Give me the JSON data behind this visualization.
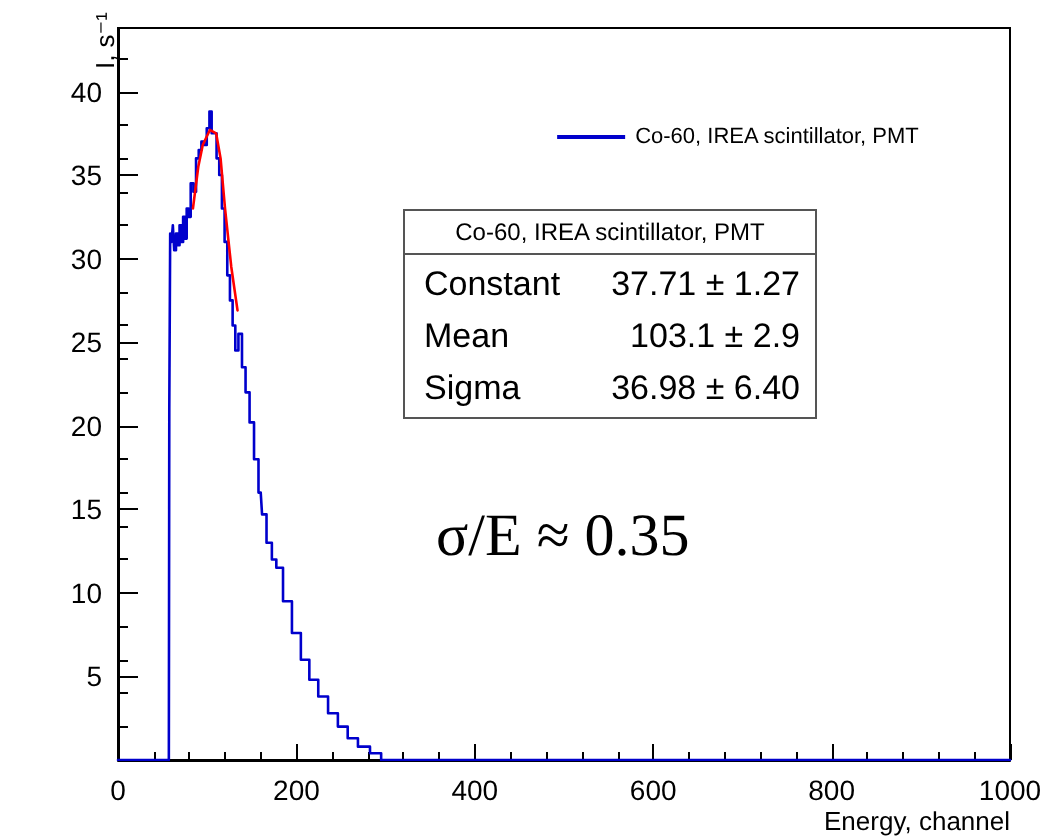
{
  "chart_data": {
    "type": "step",
    "xlabel": "Energy, channel",
    "ylabel": "I, s⁻¹",
    "xlim": [
      0,
      1000
    ],
    "xticks": [
      0,
      200,
      400,
      600,
      800,
      1000
    ],
    "ylim": [
      0,
      43.8
    ],
    "yticks": [
      5,
      10,
      15,
      20,
      25,
      30,
      35,
      40
    ],
    "grid": false,
    "legend": "top right",
    "marker": "none",
    "line_style": "solid",
    "series": [
      {
        "name": "Co-60, IREA scintillator, PMT",
        "color": "#0000cc",
        "x": [
          0,
          57,
          58,
          59,
          61,
          62,
          64,
          66,
          68,
          70,
          72,
          74,
          76,
          78,
          80,
          83,
          86,
          89,
          92,
          95,
          98,
          101,
          104,
          106,
          109,
          112,
          115,
          118,
          121,
          124,
          127,
          130,
          133,
          137,
          141,
          145,
          150,
          155,
          160,
          163,
          170,
          175,
          180,
          190,
          200,
          210,
          219,
          230,
          241,
          252,
          263,
          275,
          290,
          300,
          1000
        ],
        "values": [
          0,
          0,
          21,
          31.5,
          31,
          32,
          30.5,
          31.5,
          30.8,
          32,
          31,
          32.5,
          31.2,
          33,
          32.5,
          34.5,
          34,
          36,
          36.5,
          37,
          36.8,
          37.8,
          38.8,
          37.5,
          37.5,
          36,
          35,
          33,
          31,
          29,
          27.5,
          26,
          24.5,
          25.5,
          23.5,
          22,
          20.2,
          18,
          16,
          14.7,
          13,
          12,
          11.5,
          9.5,
          7.6,
          6,
          4.8,
          3.8,
          2.8,
          2,
          1.3,
          0.8,
          0.4,
          0,
          0
        ]
      },
      {
        "color": "#ff0000",
        "type": "line",
        "x": [
          84,
          90,
          95,
          103,
          110,
          115,
          120,
          127,
          134
        ],
        "values": [
          33,
          35.5,
          36.8,
          37.7,
          37.5,
          36,
          33,
          29.5,
          26.9
        ]
      }
    ],
    "annotations": [
      "Co-60, IREA scintillator, PMT",
      "Constant   37.71 ± 1.27",
      "Mean          103.1 ± 2.9",
      "Sigma       36.98 ± 6.40",
      "σ/E ≈ 0.35"
    ]
  }
}
